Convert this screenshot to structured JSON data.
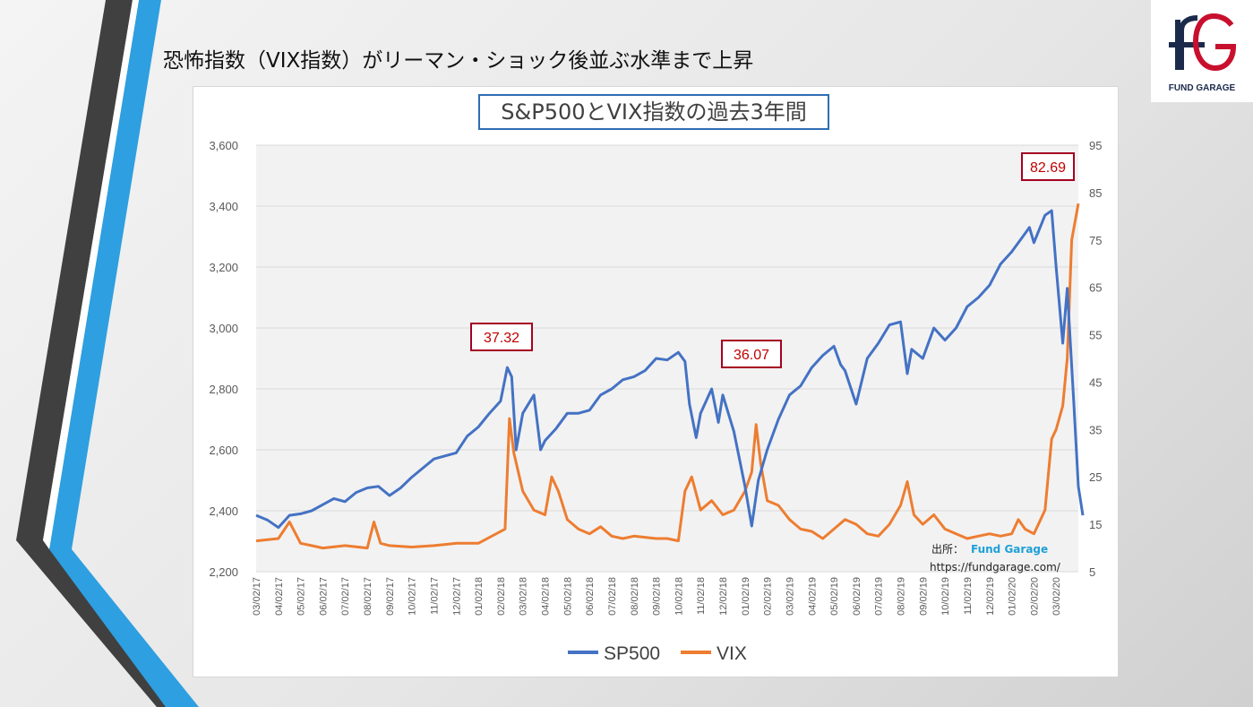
{
  "slide_title": "恐怖指数（VIX指数）がリーマン・ショック後並ぶ水準まで上昇",
  "logo": {
    "text": "FUND GARAGE",
    "mark": "FG"
  },
  "source": {
    "label": "出所：",
    "name": "Fund Garage",
    "url": "https://fundgarage.com/"
  },
  "colors": {
    "sp500": "#4472c4",
    "vix": "#ed7d31",
    "callout": "#c00000",
    "title_border": "#2f6db5",
    "deco_dark": "#404040",
    "deco_blue": "#2e9fe0"
  },
  "chart_data": {
    "type": "line",
    "title": "S&P500とVIX指数の過去3年間",
    "y_left": {
      "min": 2200,
      "max": 3600,
      "ticks": [
        "2,200",
        "2,400",
        "2,600",
        "2,800",
        "3,000",
        "3,200",
        "3,400",
        "3,600"
      ]
    },
    "y_right": {
      "min": 5,
      "max": 95,
      "ticks": [
        "5",
        "15",
        "25",
        "35",
        "45",
        "55",
        "65",
        "75",
        "85",
        "95"
      ]
    },
    "grid": "horizontal",
    "legend_position": "bottom",
    "x_tick_labels": [
      "03/02/17",
      "04/02/17",
      "05/02/17",
      "06/02/17",
      "07/02/17",
      "08/02/17",
      "09/02/17",
      "10/02/17",
      "11/02/17",
      "12/02/17",
      "01/02/18",
      "02/02/18",
      "03/02/18",
      "04/02/18",
      "05/02/18",
      "06/02/18",
      "07/02/18",
      "08/02/18",
      "09/02/18",
      "10/02/18",
      "11/02/18",
      "12/02/18",
      "01/02/19",
      "02/02/19",
      "03/02/19",
      "04/02/19",
      "05/02/19",
      "06/02/19",
      "07/02/19",
      "08/02/19",
      "09/02/19",
      "10/02/19",
      "11/02/19",
      "12/02/19",
      "01/02/20",
      "02/02/20",
      "03/02/20"
    ],
    "series": [
      {
        "name": "SP500",
        "axis": "left",
        "points": [
          [
            0,
            2385
          ],
          [
            0.5,
            2370
          ],
          [
            1,
            2345
          ],
          [
            1.5,
            2385
          ],
          [
            2,
            2390
          ],
          [
            2.5,
            2400
          ],
          [
            3,
            2420
          ],
          [
            3.5,
            2440
          ],
          [
            4,
            2430
          ],
          [
            4.5,
            2460
          ],
          [
            5,
            2475
          ],
          [
            5.5,
            2480
          ],
          [
            6,
            2450
          ],
          [
            6.5,
            2475
          ],
          [
            7,
            2510
          ],
          [
            7.5,
            2540
          ],
          [
            8,
            2570
          ],
          [
            8.5,
            2580
          ],
          [
            9,
            2590
          ],
          [
            9.5,
            2645
          ],
          [
            10,
            2675
          ],
          [
            10.5,
            2720
          ],
          [
            11,
            2760
          ],
          [
            11.3,
            2870
          ],
          [
            11.5,
            2840
          ],
          [
            11.7,
            2600
          ],
          [
            12,
            2720
          ],
          [
            12.5,
            2780
          ],
          [
            12.8,
            2600
          ],
          [
            13,
            2630
          ],
          [
            13.5,
            2670
          ],
          [
            14,
            2720
          ],
          [
            14.5,
            2720
          ],
          [
            15,
            2730
          ],
          [
            15.5,
            2780
          ],
          [
            16,
            2800
          ],
          [
            16.5,
            2830
          ],
          [
            17,
            2840
          ],
          [
            17.5,
            2860
          ],
          [
            18,
            2900
          ],
          [
            18.5,
            2895
          ],
          [
            19,
            2920
          ],
          [
            19.3,
            2890
          ],
          [
            19.5,
            2750
          ],
          [
            19.8,
            2640
          ],
          [
            20,
            2720
          ],
          [
            20.5,
            2800
          ],
          [
            20.8,
            2690
          ],
          [
            21,
            2780
          ],
          [
            21.5,
            2660
          ],
          [
            22,
            2480
          ],
          [
            22.3,
            2350
          ],
          [
            22.6,
            2500
          ],
          [
            23,
            2600
          ],
          [
            23.5,
            2700
          ],
          [
            24,
            2780
          ],
          [
            24.5,
            2810
          ],
          [
            25,
            2870
          ],
          [
            25.5,
            2910
          ],
          [
            26,
            2940
          ],
          [
            26.3,
            2880
          ],
          [
            26.5,
            2860
          ],
          [
            27,
            2750
          ],
          [
            27.5,
            2900
          ],
          [
            28,
            2950
          ],
          [
            28.5,
            3010
          ],
          [
            29,
            3020
          ],
          [
            29.3,
            2850
          ],
          [
            29.5,
            2930
          ],
          [
            30,
            2900
          ],
          [
            30.5,
            3000
          ],
          [
            31,
            2960
          ],
          [
            31.5,
            3000
          ],
          [
            32,
            3070
          ],
          [
            32.5,
            3100
          ],
          [
            33,
            3140
          ],
          [
            33.5,
            3210
          ],
          [
            34,
            3250
          ],
          [
            34.5,
            3300
          ],
          [
            34.8,
            3330
          ],
          [
            35,
            3280
          ],
          [
            35.5,
            3370
          ],
          [
            35.8,
            3385
          ],
          [
            36,
            3200
          ],
          [
            36.3,
            2950
          ],
          [
            36.5,
            3130
          ],
          [
            36.8,
            2750
          ],
          [
            37,
            2480
          ],
          [
            37.2,
            2385
          ]
        ]
      },
      {
        "name": "VIX",
        "axis": "right",
        "points": [
          [
            0,
            11.5
          ],
          [
            1,
            12
          ],
          [
            1.5,
            15.5
          ],
          [
            2,
            11
          ],
          [
            2.5,
            10.5
          ],
          [
            3,
            10
          ],
          [
            4,
            10.5
          ],
          [
            5,
            10
          ],
          [
            5.3,
            15.5
          ],
          [
            5.6,
            11
          ],
          [
            6,
            10.5
          ],
          [
            7,
            10.2
          ],
          [
            8,
            10.5
          ],
          [
            9,
            11
          ],
          [
            10,
            11
          ],
          [
            10.8,
            13
          ],
          [
            11.2,
            14
          ],
          [
            11.4,
            37.32
          ],
          [
            11.6,
            30
          ],
          [
            12,
            22
          ],
          [
            12.5,
            18
          ],
          [
            13,
            17
          ],
          [
            13.3,
            25
          ],
          [
            13.6,
            22
          ],
          [
            14,
            16
          ],
          [
            14.5,
            14
          ],
          [
            15,
            13
          ],
          [
            15.5,
            14.5
          ],
          [
            16,
            12.5
          ],
          [
            16.5,
            12
          ],
          [
            17,
            12.5
          ],
          [
            18,
            12
          ],
          [
            18.5,
            12
          ],
          [
            19,
            11.5
          ],
          [
            19.3,
            22
          ],
          [
            19.6,
            25
          ],
          [
            20,
            18
          ],
          [
            20.5,
            20
          ],
          [
            21,
            17
          ],
          [
            21.5,
            18
          ],
          [
            22,
            22
          ],
          [
            22.3,
            26
          ],
          [
            22.5,
            36.07
          ],
          [
            22.7,
            28
          ],
          [
            23,
            20
          ],
          [
            23.5,
            19
          ],
          [
            24,
            16
          ],
          [
            24.5,
            14
          ],
          [
            25,
            13.5
          ],
          [
            25.5,
            12
          ],
          [
            26,
            14
          ],
          [
            26.5,
            16
          ],
          [
            27,
            15
          ],
          [
            27.5,
            13
          ],
          [
            28,
            12.5
          ],
          [
            28.5,
            15
          ],
          [
            29,
            19
          ],
          [
            29.3,
            24
          ],
          [
            29.6,
            17
          ],
          [
            30,
            15
          ],
          [
            30.5,
            17
          ],
          [
            31,
            14
          ],
          [
            31.5,
            13
          ],
          [
            32,
            12
          ],
          [
            32.5,
            12.5
          ],
          [
            33,
            13
          ],
          [
            33.5,
            12.5
          ],
          [
            34,
            13
          ],
          [
            34.3,
            16
          ],
          [
            34.6,
            14
          ],
          [
            35,
            13
          ],
          [
            35.5,
            18
          ],
          [
            35.8,
            33
          ],
          [
            36,
            35
          ],
          [
            36.3,
            40
          ],
          [
            36.5,
            50
          ],
          [
            36.7,
            75
          ],
          [
            37,
            82.69
          ]
        ]
      }
    ],
    "annotations": [
      {
        "label": "37.32",
        "x": 11.4,
        "value": 37.32
      },
      {
        "label": "36.07",
        "x": 22.5,
        "value": 36.07
      },
      {
        "label": "82.69",
        "x": 37,
        "value": 82.69
      }
    ]
  }
}
